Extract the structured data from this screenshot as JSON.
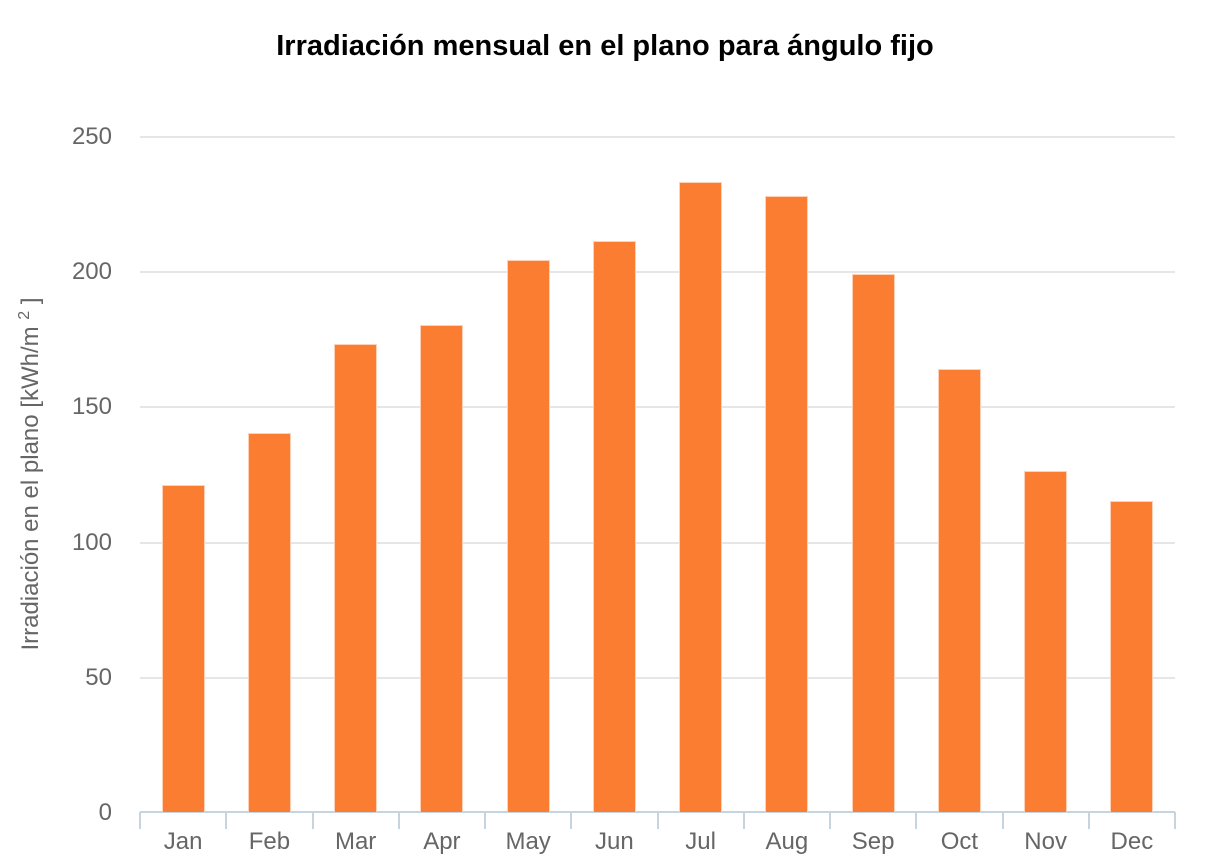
{
  "chart_data": {
    "type": "bar",
    "title": "Irradiación mensual en el plano para ángulo fijo",
    "categories": [
      "Jan",
      "Feb",
      "Mar",
      "Apr",
      "May",
      "Jun",
      "Jul",
      "Aug",
      "Sep",
      "Oct",
      "Nov",
      "Dec"
    ],
    "values": [
      121,
      140,
      173,
      180,
      204,
      211,
      233,
      228,
      199,
      164,
      126,
      115
    ],
    "xlabel": "",
    "ylabel": "Irradiación en el plano [kWh/m² ]",
    "ylabel_parts": {
      "prefix": "Irradiación en el plano [kWh/m ",
      "sup": "2",
      "suffix": " ]"
    },
    "ylim": [
      0,
      250
    ],
    "yticks": [
      0,
      50,
      100,
      150,
      200,
      250
    ],
    "grid": "horizontal-only",
    "legend": "none",
    "colors": {
      "bar": "#fb7d32",
      "axis_line": "#c6d4e1",
      "gridline": "#e6e6e6",
      "labels": "#666666",
      "title": "#000000"
    }
  }
}
